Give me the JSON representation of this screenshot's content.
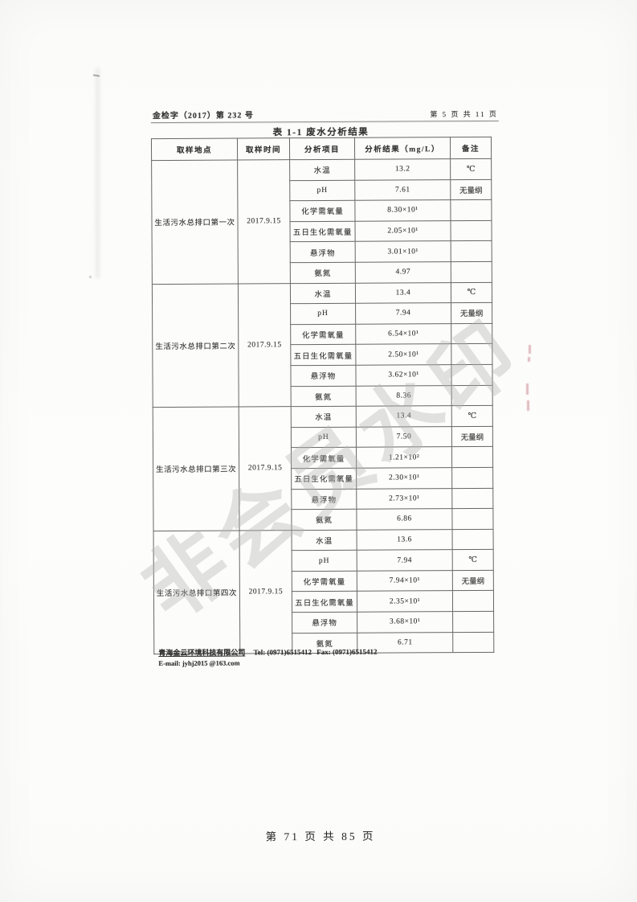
{
  "colors": {
    "watermark": "#b4b4b4",
    "artifact_red": "#c06a74"
  },
  "page_header": {
    "left": "金检字（2017）第 232 号",
    "right": "第 5 页 共 11 页"
  },
  "watermark": {
    "text": "非会员水印"
  },
  "table": {
    "title": "表 1-1 废水分析结果",
    "columns": [
      "取样地点",
      "取样时间",
      "分析项目",
      "分析结果（mg/L）",
      "备注"
    ],
    "sections": [
      {
        "location": "生活污水总排口第一次",
        "date": "2017.9.15",
        "rows": [
          {
            "item": "水温",
            "result": "13.2",
            "remark": "℃"
          },
          {
            "item": "pH",
            "result": "7.61",
            "remark": "无量纲"
          },
          {
            "item": "化学需氧量",
            "result": "8.30×10¹",
            "remark": ""
          },
          {
            "item": "五日生化需氧量",
            "result": "2.05×10¹",
            "remark": ""
          },
          {
            "item": "悬浮物",
            "result": "3.01×10¹",
            "remark": ""
          },
          {
            "item": "氨氮",
            "result": "4.97",
            "remark": ""
          }
        ]
      },
      {
        "location": "生活污水总排口第二次",
        "date": "2017.9.15",
        "rows": [
          {
            "item": "水温",
            "result": "13.4",
            "remark": "℃"
          },
          {
            "item": "pH",
            "result": "7.94",
            "remark": "无量纲"
          },
          {
            "item": "化学需氧量",
            "result": "6.54×10¹",
            "remark": ""
          },
          {
            "item": "五日生化需氧量",
            "result": "2.50×10¹",
            "remark": ""
          },
          {
            "item": "悬浮物",
            "result": "3.62×10¹",
            "remark": ""
          },
          {
            "item": "氨氮",
            "result": "8.36",
            "remark": ""
          }
        ]
      },
      {
        "location": "生活污水总排口第三次",
        "date": "2017.9.15",
        "rows": [
          {
            "item": "水温",
            "result": "13.4",
            "remark": "℃"
          },
          {
            "item": "pH",
            "result": "7.50",
            "remark": "无量纲"
          },
          {
            "item": "化学需氧量",
            "result": "1.21×10²",
            "remark": ""
          },
          {
            "item": "五日生化需氧量",
            "result": "2.30×10¹",
            "remark": ""
          },
          {
            "item": "悬浮物",
            "result": "2.73×10¹",
            "remark": ""
          },
          {
            "item": "氨氮",
            "result": "6.86",
            "remark": ""
          }
        ]
      },
      {
        "location": "生活污水总排口第四次",
        "date": "2017.9.15",
        "rows": [
          {
            "item": "水温",
            "result": "13.6",
            "remark": ""
          },
          {
            "item": "pH",
            "result": "7.94",
            "remark": "℃"
          },
          {
            "item": "化学需氧量",
            "result": "7.94×10¹",
            "remark": "无量纲"
          },
          {
            "item": "五日生化需氧量",
            "result": "2.35×10¹",
            "remark": ""
          },
          {
            "item": "悬浮物",
            "result": "3.68×10¹",
            "remark": ""
          },
          {
            "item": "氨氮",
            "result": "6.71",
            "remark": ""
          }
        ]
      }
    ]
  },
  "company_footer": {
    "company": "青海金云环境科技有限公司",
    "tel_label": "Tel:",
    "tel": "(0971)6515412",
    "fax_label": "Fax:",
    "fax": "(0971)6515412",
    "email_label": "E-mail:",
    "email": "jyhj2015 @163.com"
  },
  "page_footer": {
    "text": "第 71 页 共 85 页"
  }
}
